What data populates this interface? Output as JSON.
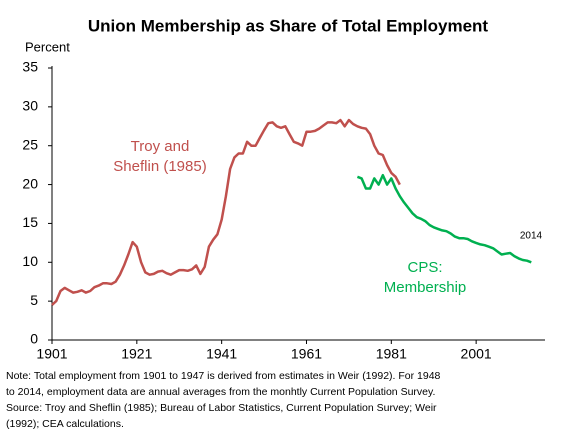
{
  "chart_data": {
    "type": "line",
    "title": "Union Membership as Share of Total Employment",
    "y_label": "Percent",
    "xlim": [
      1901,
      2017
    ],
    "xticks": [
      1901,
      1921,
      1941,
      1961,
      1981,
      2001
    ],
    "ylim": [
      0,
      35
    ],
    "yticks": [
      0,
      5,
      10,
      15,
      20,
      25,
      30,
      35
    ],
    "grid": false,
    "series": [
      {
        "label": [
          "Troy and",
          "Sheflin (1985)"
        ],
        "color": "#c0504d",
        "x": [
          1901,
          1902,
          1903,
          1904,
          1905,
          1906,
          1907,
          1908,
          1909,
          1910,
          1911,
          1912,
          1913,
          1914,
          1915,
          1916,
          1917,
          1918,
          1919,
          1920,
          1921,
          1922,
          1923,
          1924,
          1925,
          1926,
          1927,
          1928,
          1929,
          1930,
          1931,
          1932,
          1933,
          1934,
          1935,
          1936,
          1937,
          1938,
          1939,
          1940,
          1941,
          1942,
          1943,
          1944,
          1945,
          1946,
          1947,
          1948,
          1949,
          1950,
          1951,
          1952,
          1953,
          1954,
          1955,
          1956,
          1957,
          1958,
          1959,
          1960,
          1961,
          1962,
          1963,
          1964,
          1965,
          1966,
          1967,
          1968,
          1969,
          1970,
          1971,
          1972,
          1973,
          1974,
          1975,
          1976,
          1977,
          1978,
          1979,
          1980,
          1981,
          1982,
          1983
        ],
        "values": [
          4.5,
          5.0,
          6.3,
          6.7,
          6.4,
          6.1,
          6.2,
          6.4,
          6.1,
          6.3,
          6.8,
          7.0,
          7.3,
          7.3,
          7.2,
          7.5,
          8.4,
          9.6,
          11.0,
          12.6,
          12.0,
          10.0,
          8.7,
          8.4,
          8.5,
          8.8,
          8.9,
          8.6,
          8.4,
          8.7,
          9.0,
          9.0,
          8.9,
          9.1,
          9.6,
          8.5,
          9.4,
          12.0,
          12.9,
          13.6,
          15.5,
          18.5,
          22.0,
          23.5,
          24.0,
          24.0,
          25.5,
          25.0,
          25.0,
          26.0,
          27.0,
          27.9,
          28.0,
          27.5,
          27.3,
          27.5,
          26.5,
          25.5,
          25.3,
          25.0,
          26.8,
          26.8,
          26.9,
          27.2,
          27.6,
          28.0,
          28.0,
          27.9,
          28.3,
          27.5,
          28.3,
          27.8,
          27.5,
          27.3,
          27.2,
          26.5,
          25.0,
          24.0,
          23.8,
          22.5,
          21.5,
          21.0,
          20.0
        ]
      },
      {
        "label": [
          "CPS:",
          "Membership"
        ],
        "color": "#00b050",
        "x": [
          1973,
          1974,
          1975,
          1976,
          1977,
          1978,
          1979,
          1980,
          1981,
          1982,
          1983,
          1984,
          1985,
          1986,
          1987,
          1988,
          1989,
          1990,
          1991,
          1992,
          1993,
          1994,
          1995,
          1996,
          1997,
          1998,
          1999,
          2000,
          2001,
          2002,
          2003,
          2004,
          2005,
          2006,
          2007,
          2008,
          2009,
          2010,
          2011,
          2012,
          2013,
          2014
        ],
        "values": [
          21.0,
          20.8,
          19.5,
          19.5,
          20.8,
          20.0,
          21.2,
          20.0,
          20.8,
          19.5,
          18.5,
          17.7,
          17.0,
          16.3,
          15.8,
          15.6,
          15.3,
          14.8,
          14.5,
          14.3,
          14.1,
          14.0,
          13.7,
          13.3,
          13.1,
          13.1,
          13.0,
          12.7,
          12.5,
          12.3,
          12.2,
          12.0,
          11.8,
          11.4,
          11.0,
          11.1,
          11.2,
          10.8,
          10.5,
          10.3,
          10.2,
          10.0
        ]
      }
    ],
    "annotation": "2014",
    "note": [
      "Note: Total employment from 1901 to 1947 is derived from estimates in Weir (1992). For 1948",
      "to 2014, employment data are annual averages from the monhtly Current Population Survey.",
      "Source: Troy and Sheflin (1985); Bureau of Labor Statistics, Current Population Survey; Weir",
      "(1992); CEA calculations."
    ]
  }
}
